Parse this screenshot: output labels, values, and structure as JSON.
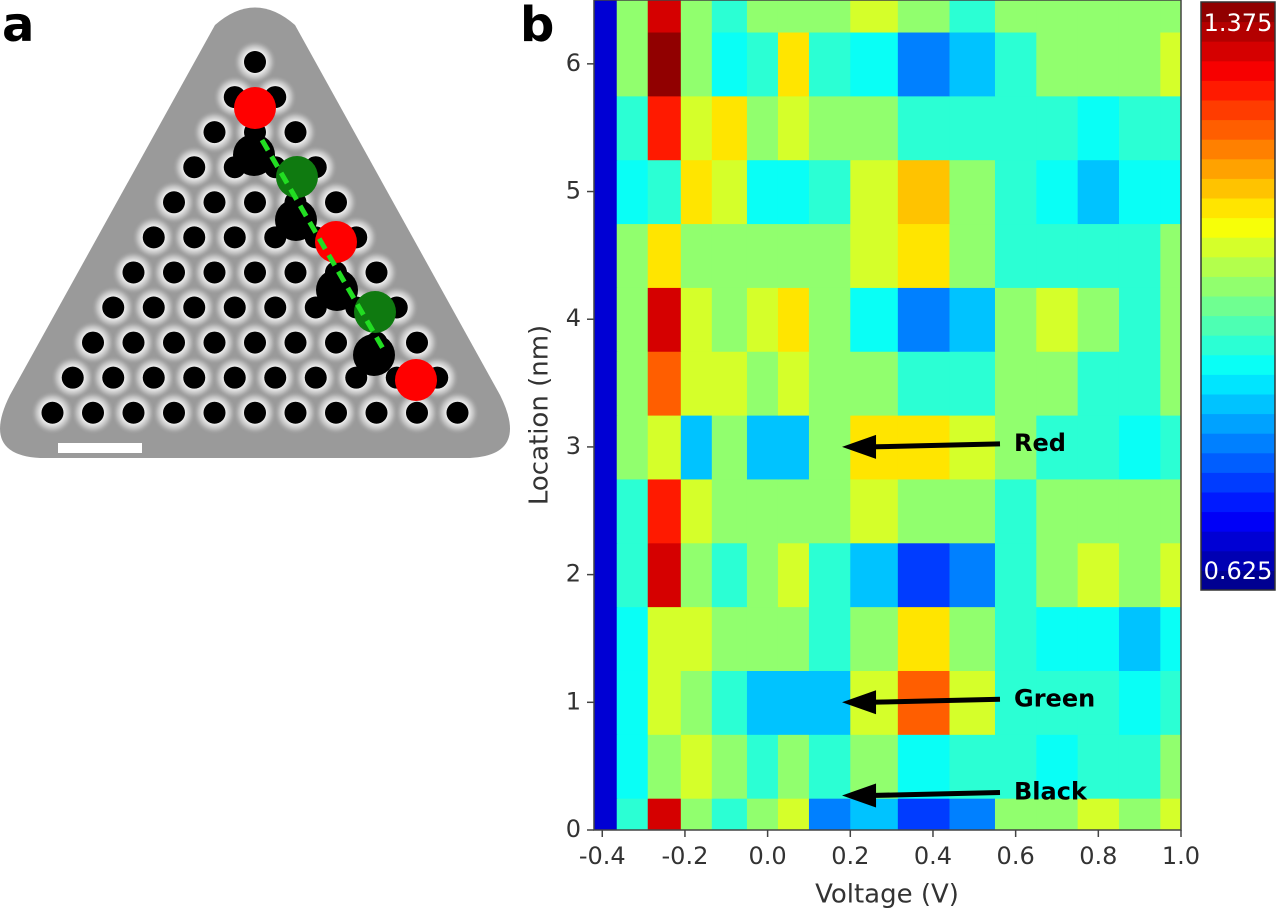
{
  "chart_data": {
    "type": "heatmap",
    "panel_labels": [
      "a",
      "b"
    ],
    "xlabel": "Voltage (V)",
    "ylabel": "Location (nm)",
    "xlim": [
      -0.42,
      1.0
    ],
    "ylim": [
      0,
      6.5
    ],
    "xticks": [
      -0.4,
      -0.2,
      {
        "value": 0,
        "label": "0.0"
      },
      0.2,
      0.4,
      0.6,
      0.8,
      {
        "value": 1,
        "label": "1.0"
      }
    ],
    "yticks": [
      0,
      1,
      2,
      3,
      4,
      5,
      6
    ],
    "colorbar": {
      "range": [
        0.625,
        1.375
      ]
    },
    "x": [
      -0.4,
      -0.33,
      -0.25,
      -0.17,
      -0.1,
      0,
      0.05,
      0.15,
      0.25,
      0.38,
      0.5,
      0.6,
      0.7,
      0.8,
      0.9,
      1.0
    ],
    "y": [
      0,
      0.5,
      1,
      1.5,
      2,
      2.5,
      3,
      3.5,
      4,
      4.5,
      5,
      5.5,
      6,
      6.5
    ],
    "z": [
      [
        0.68,
        0.95,
        1.3,
        1.0,
        0.95,
        1.0,
        1.05,
        0.8,
        0.85,
        0.75,
        0.8,
        1.0,
        1.0,
        1.05,
        1.0,
        1.05
      ],
      [
        0.7,
        0.9,
        1.0,
        1.05,
        1.0,
        0.95,
        1.0,
        0.95,
        1.0,
        0.9,
        0.95,
        0.95,
        0.9,
        0.95,
        0.95,
        1.0
      ],
      [
        0.7,
        0.9,
        1.05,
        1.0,
        0.95,
        0.85,
        0.85,
        0.85,
        1.05,
        1.2,
        1.05,
        0.95,
        0.95,
        0.95,
        0.9,
        0.95
      ],
      [
        0.7,
        0.9,
        1.05,
        1.05,
        1.0,
        1.0,
        1.0,
        0.95,
        1.0,
        1.1,
        1.0,
        0.95,
        0.9,
        0.9,
        0.85,
        0.9
      ],
      [
        0.68,
        0.95,
        1.3,
        1.0,
        0.95,
        1.0,
        1.05,
        0.95,
        0.85,
        0.75,
        0.8,
        0.95,
        1.0,
        1.05,
        1.0,
        1.05
      ],
      [
        0.7,
        0.95,
        1.25,
        1.05,
        1.0,
        1.0,
        1.0,
        1.0,
        1.05,
        1.0,
        1.0,
        0.95,
        1.0,
        1.0,
        1.0,
        1.0
      ],
      [
        0.7,
        1.0,
        1.05,
        0.85,
        1.0,
        0.85,
        0.85,
        1.0,
        1.1,
        1.1,
        1.05,
        1.0,
        0.95,
        0.95,
        0.9,
        0.95
      ],
      [
        0.68,
        1.0,
        1.2,
        1.05,
        1.05,
        1.0,
        1.05,
        1.0,
        1.0,
        0.95,
        0.95,
        1.0,
        1.0,
        0.95,
        0.95,
        1.0
      ],
      [
        0.68,
        1.0,
        1.3,
        1.05,
        1.0,
        1.05,
        1.1,
        1.0,
        0.9,
        0.8,
        0.85,
        1.0,
        1.05,
        1.0,
        0.95,
        1.0
      ],
      [
        0.7,
        1.0,
        1.1,
        1.0,
        1.0,
        1.0,
        1.0,
        1.0,
        1.05,
        1.1,
        1.0,
        0.95,
        0.95,
        0.95,
        0.95,
        1.0
      ],
      [
        0.7,
        0.9,
        0.95,
        1.1,
        1.05,
        0.9,
        0.9,
        0.95,
        1.05,
        1.15,
        1.0,
        0.95,
        0.9,
        0.85,
        0.9,
        0.9
      ],
      [
        0.7,
        0.95,
        1.25,
        1.05,
        1.1,
        1.0,
        1.05,
        1.0,
        1.0,
        0.95,
        0.95,
        0.95,
        0.95,
        0.9,
        0.95,
        0.95
      ],
      [
        0.68,
        1.0,
        1.35,
        1.0,
        0.9,
        0.95,
        1.1,
        0.95,
        0.9,
        0.8,
        0.85,
        0.95,
        1.0,
        1.0,
        1.0,
        1.05
      ],
      [
        0.7,
        1.0,
        1.3,
        1.0,
        0.95,
        1.0,
        1.0,
        1.0,
        1.05,
        1.0,
        0.95,
        1.0,
        1.0,
        1.0,
        1.0,
        1.0
      ]
    ],
    "annotations": [
      {
        "text": "Red",
        "x": 0.18,
        "y": 3
      },
      {
        "text": "Green",
        "x": 0.18,
        "y": 1
      },
      {
        "text": "Black",
        "x": 0.18,
        "y": 0.27
      }
    ]
  }
}
